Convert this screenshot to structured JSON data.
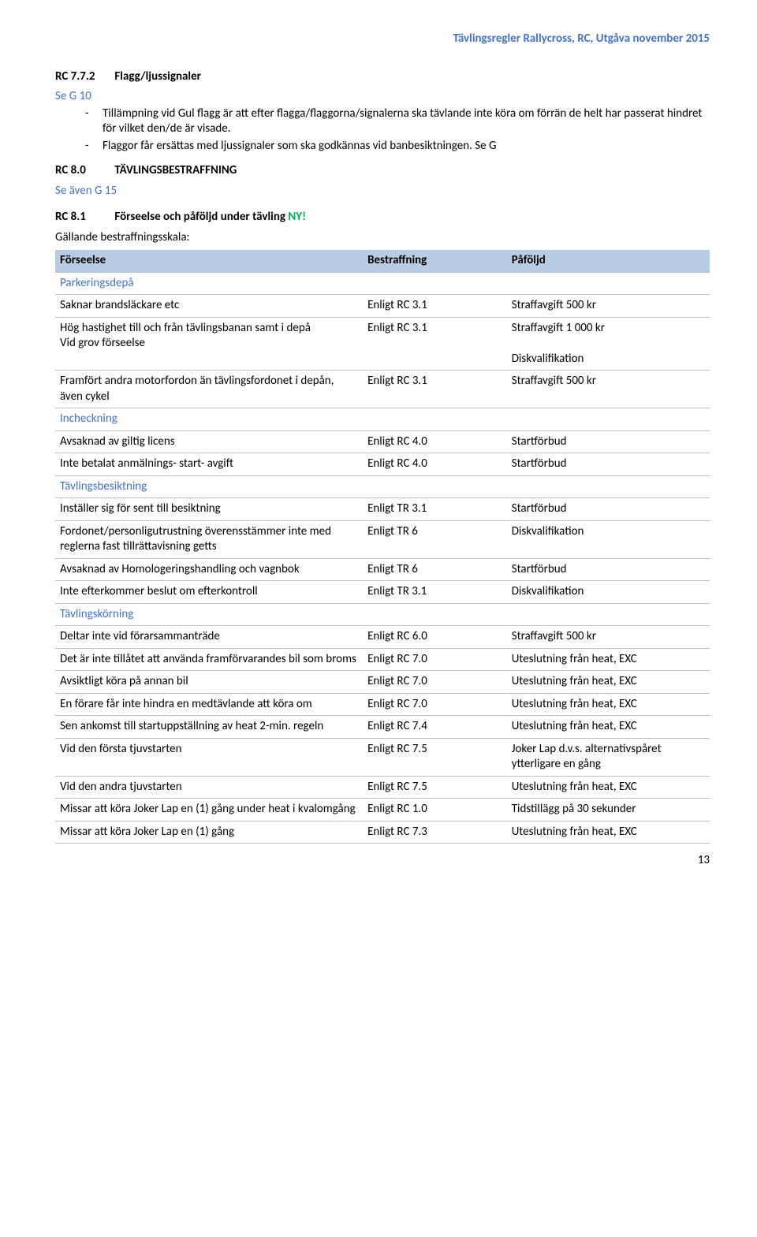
{
  "doc_header": "Tävlingsregler Rallycross, RC, Utgåva november 2015",
  "sec772": {
    "rc": "RC 7.7.2",
    "title": "Flagg/ljussignaler",
    "sub": "Se G 10",
    "bullets": [
      "Tillämpning vid Gul flagg är att efter flagga/flaggorna/signalerna ska tävlande inte köra om förrän de helt har passerat hindret för vilket den/de är visade.",
      "Flaggor får ersättas med ljussignaler som ska godkännas vid banbesiktningen. Se G"
    ]
  },
  "sec80": {
    "rc": "RC 8.0",
    "title": "TÄVLINGSBESTRAFFNING",
    "sub": "Se även G 15"
  },
  "sec81": {
    "rc": "RC 8.1",
    "title_a": "Förseelse och påföljd under tävling ",
    "title_b": "NY!",
    "sub": "Gällande bestraffningsskala:"
  },
  "table": {
    "headers": [
      "Förseelse",
      "Bestraffning",
      "Påföljd"
    ],
    "rows": [
      {
        "type": "section",
        "c1": "Parkeringsdepå"
      },
      {
        "type": "data",
        "c1": "Saknar brandsläckare etc",
        "c2": "Enligt RC 3.1",
        "c3": "Straffavgift 500 kr"
      },
      {
        "type": "data",
        "c1": "Hög hastighet till och från tävlingsbanan samt i depå\nVid grov förseelse",
        "c2": "Enligt RC 3.1",
        "c3": "Straffavgift 1 000 kr\n\nDiskvalifikation"
      },
      {
        "type": "data",
        "c1": "Framfört andra motorfordon än tävlingsfordonet i depån, även cykel",
        "c2": "Enligt RC 3.1",
        "c3": "Straffavgift 500 kr"
      },
      {
        "type": "section",
        "c1": "Incheckning"
      },
      {
        "type": "data",
        "c1": "Avsaknad av giltig licens",
        "c2": "Enligt RC 4.0",
        "c3": "Startförbud"
      },
      {
        "type": "data",
        "c1": "Inte betalat anmälnings- start- avgift",
        "c2": "Enligt RC 4.0",
        "c3": "Startförbud"
      },
      {
        "type": "section",
        "c1": "Tävlingsbesiktning"
      },
      {
        "type": "data",
        "c1": "Inställer sig för sent till besiktning",
        "c2": "Enligt TR 3.1",
        "c3": "Startförbud"
      },
      {
        "type": "data",
        "c1": "Fordonet/personligutrustning överensstämmer inte med reglerna fast tillrättavisning getts",
        "c2": "Enligt TR 6",
        "c3": "Diskvalifikation"
      },
      {
        "type": "data",
        "c1": "Avsaknad av Homologeringshandling och vagnbok",
        "c2": "Enligt TR 6",
        "c3": "Startförbud"
      },
      {
        "type": "data",
        "c1": "Inte efterkommer beslut om efterkontroll",
        "c2": "Enligt TR 3.1",
        "c3": "Diskvalifikation"
      },
      {
        "type": "section",
        "c1": "Tävlingskörning"
      },
      {
        "type": "data",
        "c1": "Deltar inte vid förarsammanträde",
        "c2": "Enligt RC 6.0",
        "c3": "Straffavgift 500 kr"
      },
      {
        "type": "data",
        "c1": "Det är inte tillåtet att använda framförvarandes bil som broms",
        "c2": "Enligt RC 7.0",
        "c3": "Uteslutning från heat, EXC"
      },
      {
        "type": "data",
        "c1": "Avsiktligt köra på annan bil",
        "c2": "Enligt RC 7.0",
        "c3": "Uteslutning från heat, EXC"
      },
      {
        "type": "data",
        "c1": "En förare får inte hindra en medtävlande att köra om",
        "c2": "Enligt RC 7.0",
        "c3": "Uteslutning från heat, EXC"
      },
      {
        "type": "data",
        "c1": "Sen ankomst till startuppställning av heat 2-min. regeln",
        "c2": "Enligt RC 7.4",
        "c3": "Uteslutning från heat, EXC"
      },
      {
        "type": "data",
        "c1": "Vid den första tjuvstarten",
        "c2": "Enligt RC 7.5",
        "c3": "Joker Lap d.v.s. alternativspåret ytterligare en gång"
      },
      {
        "type": "data",
        "c1": "Vid den andra tjuvstarten",
        "c2": "Enligt RC 7.5",
        "c3": "Uteslutning från heat, EXC"
      },
      {
        "type": "data",
        "c1": "Missar att köra Joker Lap en (1) gång under heat i kvalomgång",
        "c2": "Enligt RC 1.0",
        "c3": "Tidstillägg på 30 sekunder"
      },
      {
        "type": "data",
        "c1": "Missar att köra Joker Lap en (1) gång",
        "c2": "Enligt RC 7.3",
        "c3": "Uteslutning från heat, EXC"
      }
    ]
  },
  "page_number": "13",
  "colors": {
    "accent_blue": "#4472c4",
    "header_bg": "#b8cce4",
    "ny_green": "#00b050"
  }
}
